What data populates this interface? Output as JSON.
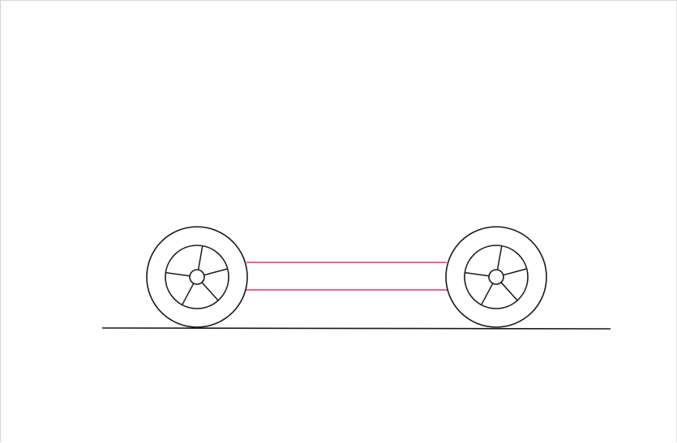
{
  "drawing": {
    "subject": "car-chassis-sketch",
    "colors": {
      "outline": "#1a1a1a",
      "frame_rails": "#e0306a",
      "background": "#ffffff"
    },
    "wheel_count": 2,
    "spokes_per_wheel": 5,
    "frame_rail_count": 2
  }
}
